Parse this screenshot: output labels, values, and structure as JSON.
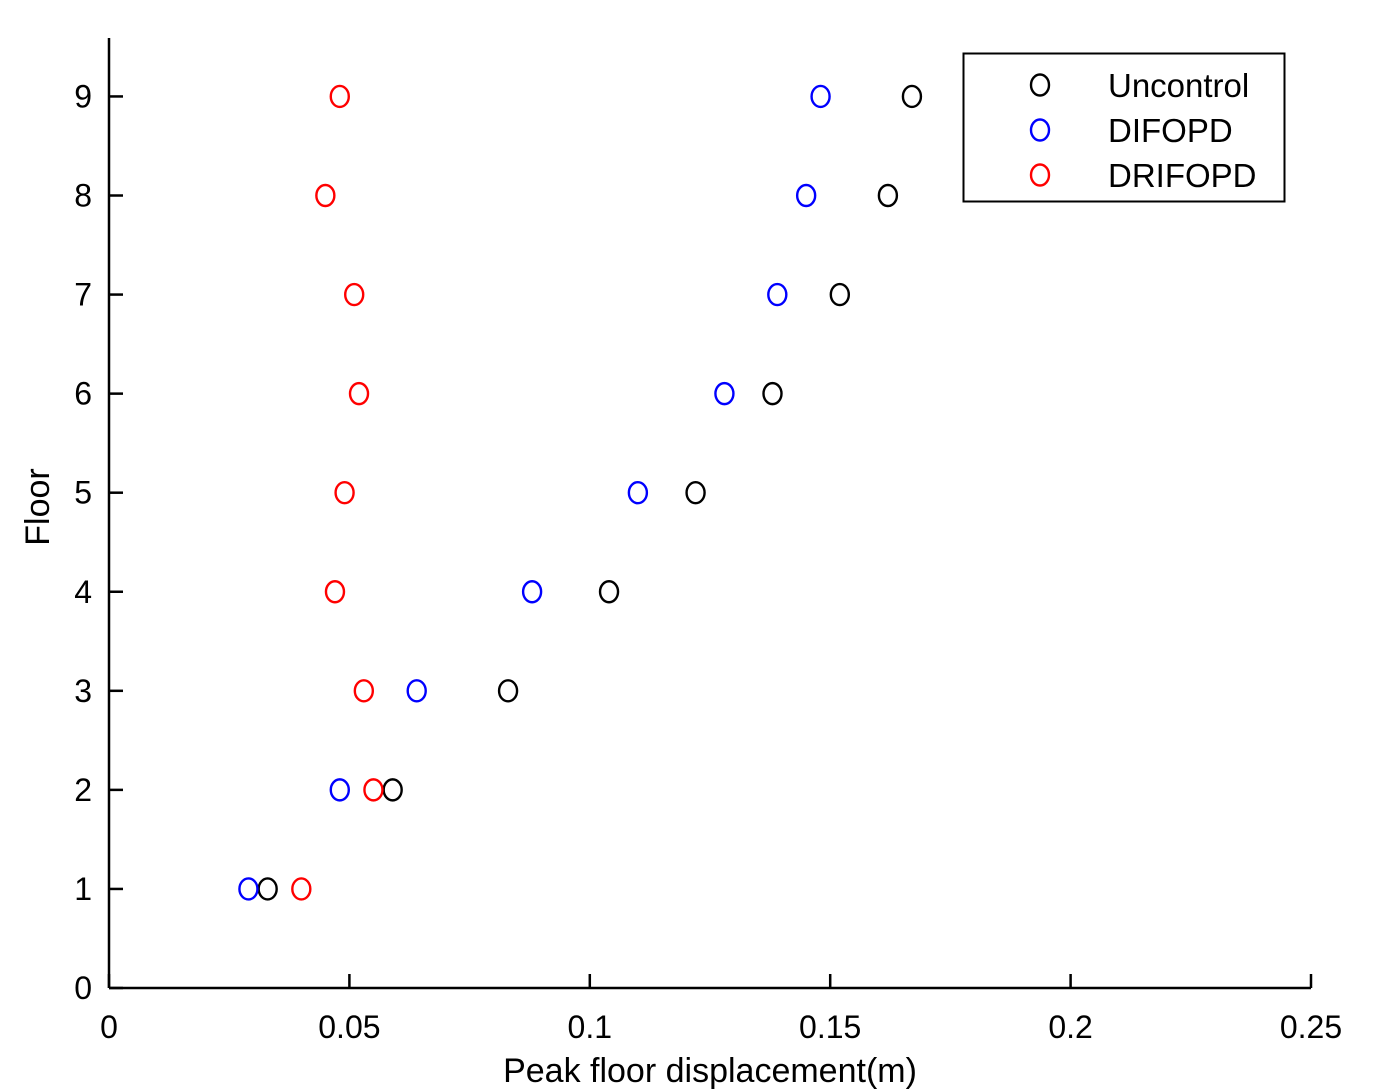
{
  "figure": {
    "background_color": "#ffffff",
    "axis_color": "#000000"
  },
  "chart_data": {
    "type": "scatter",
    "title": "",
    "xlabel": "Peak floor displacement(m)",
    "ylabel": "Floor",
    "xlim": [
      0,
      0.25
    ],
    "ylim": [
      0,
      9.59
    ],
    "xticks": [
      0,
      0.05,
      0.1,
      0.15,
      0.2,
      0.25
    ],
    "xtick_labels": [
      "0",
      "0.05",
      "0.1",
      "0.15",
      "0.2",
      "0.25"
    ],
    "yticks": [
      0,
      1,
      2,
      3,
      4,
      5,
      6,
      7,
      8,
      9
    ],
    "ytick_labels": [
      "0",
      "1",
      "2",
      "3",
      "4",
      "5",
      "6",
      "7",
      "8",
      "9"
    ],
    "grid": false,
    "legend_position": "top-right",
    "categories": [
      1,
      2,
      3,
      4,
      5,
      6,
      7,
      8,
      9
    ],
    "series": [
      {
        "name": "Uncontrol",
        "color": "#000000",
        "marker": "circle",
        "values": [
          0.033,
          0.059,
          0.083,
          0.104,
          0.122,
          0.138,
          0.152,
          0.162,
          0.167
        ]
      },
      {
        "name": "DIFOPD",
        "color": "#0000ff",
        "marker": "circle",
        "values": [
          0.029,
          0.048,
          0.064,
          0.088,
          0.11,
          0.128,
          0.139,
          0.145,
          0.148
        ]
      },
      {
        "name": "DRIFOPD",
        "color": "#ff0000",
        "marker": "circle",
        "values": [
          0.04,
          0.055,
          0.053,
          0.047,
          0.049,
          0.052,
          0.051,
          0.045,
          0.048
        ]
      }
    ]
  }
}
